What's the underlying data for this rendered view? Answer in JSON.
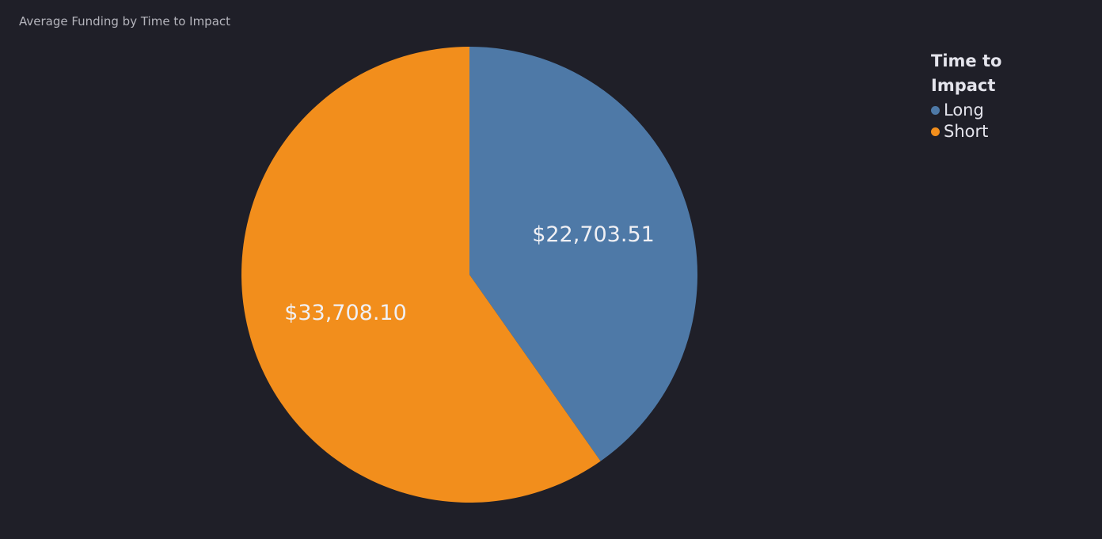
{
  "chart_data": {
    "type": "pie",
    "title": "Average Funding by Time to Impact",
    "legend_title": "Time to Impact",
    "categories": [
      "Long",
      "Short"
    ],
    "values": [
      22703.51,
      33708.1
    ],
    "value_labels": [
      "$22,703.51",
      "$33,708.10"
    ],
    "colors": [
      "#4e79a7",
      "#f28e1c"
    ]
  }
}
